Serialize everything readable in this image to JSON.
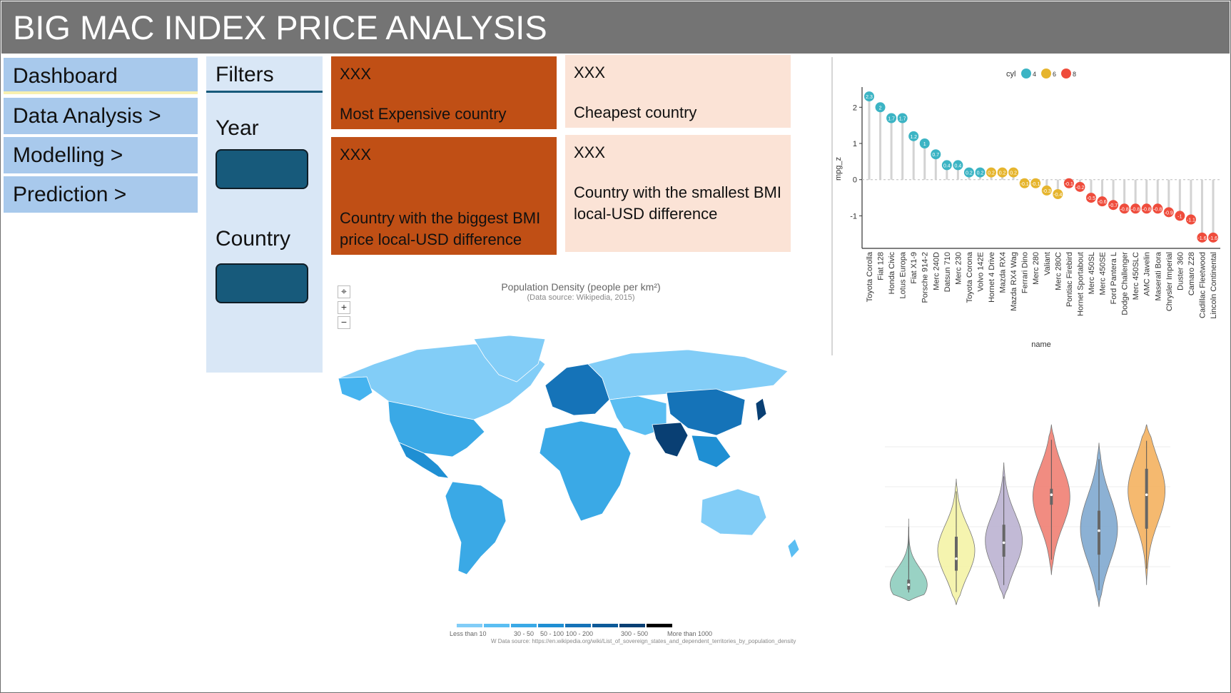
{
  "title": "BIG MAC INDEX PRICE ANALYSIS",
  "nav": {
    "items": [
      {
        "label": "Dashboard"
      },
      {
        "label": "Data Analysis >"
      },
      {
        "label": "Modelling >"
      },
      {
        "label": "Prediction >"
      }
    ]
  },
  "filters": {
    "title": "Filters",
    "year_label": "Year",
    "country_label": "Country"
  },
  "kpis": {
    "most_expensive": {
      "value": "XXX",
      "label": "Most Expensive country"
    },
    "cheapest": {
      "value": "XXX",
      "label": "Cheapest country"
    },
    "biggest_diff": {
      "value": "XXX",
      "label": "Country with the biggest BMI price local-USD difference"
    },
    "smallest_diff": {
      "value": "XXX",
      "label": "Country with the smallest BMI local-USD difference"
    }
  },
  "map": {
    "title": "Population Density (people per km²)",
    "subtitle": "(Data source: Wikipedia, 2015)",
    "controls": {
      "reset": "⌖",
      "zoom_in": "+",
      "zoom_out": "−"
    },
    "legend": [
      "Less than 10",
      "30 - 50",
      "50 - 100",
      "100 - 200",
      "300 - 500",
      "More than 1000"
    ],
    "legend_colors": [
      "#82cdf7",
      "#5bbef2",
      "#3aa9e6",
      "#1f8fd3",
      "#1573b8",
      "#0d5a99",
      "#093f73",
      "#000000"
    ],
    "source": "W Data source: https://en.wikipedia.org/wiki/List_of_sovereign_states_and_dependent_territories_by_population_density"
  },
  "chart_data": [
    {
      "type": "lollipop",
      "legend_title": "cyl",
      "legend": [
        {
          "label": "4",
          "color": "#3cb4c4"
        },
        {
          "label": "6",
          "color": "#e6b52e"
        },
        {
          "label": "8",
          "color": "#ef4c3c"
        }
      ],
      "xlabel": "name",
      "ylabel": "mpg_z",
      "ylim": [
        -1.8,
        2.4
      ],
      "yticks": [
        -1,
        0,
        1,
        2
      ],
      "points": [
        {
          "name": "Toyota Corolla",
          "value": 2.3,
          "label": "2.3",
          "cyl": "4"
        },
        {
          "name": "Fiat 128",
          "value": 2.0,
          "label": "2",
          "cyl": "4"
        },
        {
          "name": "Honda Civic",
          "value": 1.7,
          "label": "1.7",
          "cyl": "4"
        },
        {
          "name": "Lotus Europa",
          "value": 1.7,
          "label": "1.7",
          "cyl": "4"
        },
        {
          "name": "Fiat X1-9",
          "value": 1.2,
          "label": "1.2",
          "cyl": "4"
        },
        {
          "name": "Porsche 914-2",
          "value": 1.0,
          "label": "1",
          "cyl": "4"
        },
        {
          "name": "Merc 240D",
          "value": 0.7,
          "label": "0.7",
          "cyl": "4"
        },
        {
          "name": "Datsun 710",
          "value": 0.4,
          "label": "0.4",
          "cyl": "4"
        },
        {
          "name": "Merc 230",
          "value": 0.4,
          "label": "0.4",
          "cyl": "4"
        },
        {
          "name": "Toyota Corona",
          "value": 0.2,
          "label": "0.2",
          "cyl": "4"
        },
        {
          "name": "Volvo 142E",
          "value": 0.2,
          "label": "0.2",
          "cyl": "4"
        },
        {
          "name": "Hornet 4 Drive",
          "value": 0.2,
          "label": "0.2",
          "cyl": "6"
        },
        {
          "name": "Mazda RX4",
          "value": 0.2,
          "label": "0.2",
          "cyl": "6"
        },
        {
          "name": "Mazda RX4 Wag",
          "value": 0.2,
          "label": "0.2",
          "cyl": "6"
        },
        {
          "name": "Ferrari Dino",
          "value": -0.1,
          "label": "-0.1",
          "cyl": "6"
        },
        {
          "name": "Merc 280",
          "value": -0.1,
          "label": "-0.1",
          "cyl": "6"
        },
        {
          "name": "Valiant",
          "value": -0.3,
          "label": "-0.3",
          "cyl": "6"
        },
        {
          "name": "Merc 280C",
          "value": -0.4,
          "label": "-0.4",
          "cyl": "6"
        },
        {
          "name": "Pontiac Firebird",
          "value": -0.1,
          "label": "-0.1",
          "cyl": "8"
        },
        {
          "name": "Hornet Sportabout",
          "value": -0.2,
          "label": "-0.2",
          "cyl": "8"
        },
        {
          "name": "Merc 450SL",
          "value": -0.5,
          "label": "-0.5",
          "cyl": "8"
        },
        {
          "name": "Merc 450SE",
          "value": -0.6,
          "label": "-0.6",
          "cyl": "8"
        },
        {
          "name": "Ford Pantera L",
          "value": -0.7,
          "label": "-0.7",
          "cyl": "8"
        },
        {
          "name": "Dodge Challenger",
          "value": -0.8,
          "label": "-0.8",
          "cyl": "8"
        },
        {
          "name": "Merc 450SLC",
          "value": -0.8,
          "label": "-0.8",
          "cyl": "8"
        },
        {
          "name": "AMC Javelin",
          "value": -0.8,
          "label": "-0.8",
          "cyl": "8"
        },
        {
          "name": "Maserati Bora",
          "value": -0.8,
          "label": "-0.8",
          "cyl": "8"
        },
        {
          "name": "Chrysler Imperial",
          "value": -0.9,
          "label": "-0.9",
          "cyl": "8"
        },
        {
          "name": "Duster 360",
          "value": -1.0,
          "label": "-1",
          "cyl": "8"
        },
        {
          "name": "Camaro Z28",
          "value": -1.1,
          "label": "-1.1",
          "cyl": "8"
        },
        {
          "name": "Cadillac Fleetwood",
          "value": -1.6,
          "label": "-1.6",
          "cyl": "8"
        },
        {
          "name": "Lincoln Continental",
          "value": -1.6,
          "label": "-1.6",
          "cyl": "8"
        }
      ]
    },
    {
      "type": "violin",
      "ylim": [
        0,
        10
      ],
      "violins": [
        {
          "color": "#8ecdbe",
          "min": 0.3,
          "max": 4.4,
          "mode": 1.1,
          "q1": 0.85,
          "median": 1.1,
          "q3": 1.35
        },
        {
          "color": "#f4f3a6",
          "min": 0.1,
          "max": 6.4,
          "mode": 2.8,
          "q1": 1.8,
          "median": 2.4,
          "q3": 3.5
        },
        {
          "color": "#bbb2d2",
          "min": 0.4,
          "max": 7.2,
          "mode": 3.3,
          "q1": 2.5,
          "median": 3.2,
          "q3": 4.1
        },
        {
          "color": "#f08073",
          "min": 1.6,
          "max": 9.1,
          "mode": 5.5,
          "q1": 5.1,
          "median": 5.6,
          "q3": 5.9
        },
        {
          "color": "#7fa9cf",
          "min": 0.0,
          "max": 8.2,
          "mode": 3.9,
          "q1": 2.6,
          "median": 3.8,
          "q3": 4.8
        },
        {
          "color": "#f4b15f",
          "min": 1.1,
          "max": 9.1,
          "mode": 5.8,
          "q1": 3.9,
          "median": 5.6,
          "q3": 6.9
        }
      ]
    }
  ]
}
